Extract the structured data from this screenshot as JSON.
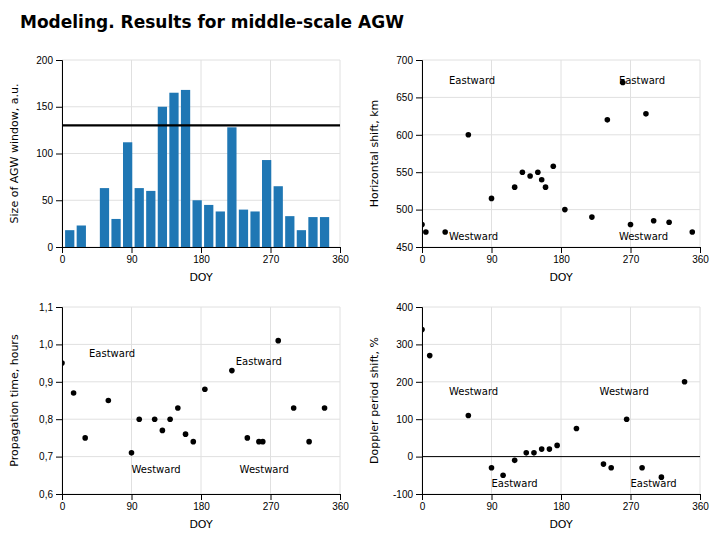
{
  "title": "Modeling. Results for middle-scale AGW",
  "chart_data": [
    {
      "type": "bar",
      "x": [
        10,
        25,
        55,
        70,
        85,
        100,
        115,
        130,
        145,
        160,
        175,
        190,
        205,
        220,
        235,
        250,
        265,
        280,
        295,
        310,
        325,
        340
      ],
      "values": [
        18,
        23,
        63,
        30,
        112,
        63,
        60,
        150,
        165,
        168,
        50,
        45,
        38,
        128,
        40,
        38,
        93,
        65,
        33,
        18,
        32,
        32
      ],
      "hline": 130,
      "xlabel": "DOY",
      "ylabel": "Size of AGW window, a.u.",
      "xlim": [
        0,
        360
      ],
      "ylim": [
        0,
        200
      ],
      "xticks": [
        0,
        90,
        180,
        270,
        360
      ],
      "yticks": [
        0,
        50,
        100,
        150,
        200
      ],
      "grid": true
    },
    {
      "type": "scatter",
      "x": [
        0,
        5,
        30,
        60,
        90,
        120,
        130,
        140,
        150,
        155,
        160,
        170,
        185,
        220,
        240,
        260,
        270,
        290,
        300,
        320,
        350
      ],
      "values": [
        480,
        470,
        470,
        600,
        515,
        530,
        550,
        545,
        550,
        540,
        530,
        558,
        500,
        490,
        620,
        670,
        480,
        628,
        485,
        483,
        470
      ],
      "color": "#000000",
      "annotations": [
        {
          "text": "Eastward",
          "x": 35,
          "y": 668
        },
        {
          "text": "Eastward",
          "x": 255,
          "y": 668
        },
        {
          "text": "Westward",
          "x": 35,
          "y": 460
        },
        {
          "text": "Westward",
          "x": 255,
          "y": 460
        }
      ],
      "xlabel": "DOY",
      "ylabel": "Horizontal shift, km",
      "xlim": [
        0,
        360
      ],
      "ylim": [
        450,
        700
      ],
      "xticks": [
        0,
        90,
        180,
        270,
        360
      ],
      "yticks": [
        450,
        500,
        550,
        600,
        650,
        700
      ],
      "grid": true
    },
    {
      "type": "scatter",
      "x": [
        0,
        15,
        30,
        60,
        90,
        100,
        120,
        130,
        140,
        150,
        160,
        170,
        185,
        220,
        240,
        255,
        260,
        280,
        300,
        320,
        340
      ],
      "values": [
        0.95,
        0.87,
        0.75,
        0.85,
        0.71,
        0.8,
        0.8,
        0.77,
        0.8,
        0.83,
        0.76,
        0.74,
        0.88,
        0.93,
        0.75,
        0.74,
        0.74,
        1.01,
        0.83,
        0.74,
        0.83
      ],
      "color": "#000000",
      "annotations": [
        {
          "text": "Eastward",
          "x": 35,
          "y": 0.965
        },
        {
          "text": "Eastward",
          "x": 225,
          "y": 0.945
        },
        {
          "text": "Westward",
          "x": 90,
          "y": 0.655
        },
        {
          "text": "Westward",
          "x": 230,
          "y": 0.655
        }
      ],
      "xlabel": "DOY",
      "ylabel": "Propagation time, hours",
      "xlim": [
        0,
        360
      ],
      "ylim": [
        0.6,
        1.1
      ],
      "xticks": [
        0,
        90,
        180,
        270,
        360
      ],
      "yticks": [
        {
          "value": 0.6,
          "label": "0,6"
        },
        {
          "value": 0.7,
          "label": "0,7"
        },
        {
          "value": 0.8,
          "label": "0,8"
        },
        {
          "value": 0.9,
          "label": "0,9"
        },
        {
          "value": 1.0,
          "label": "1,0"
        },
        {
          "value": 1.1,
          "label": "1,1"
        }
      ],
      "grid": true
    },
    {
      "type": "scatter",
      "x": [
        0,
        10,
        60,
        90,
        105,
        120,
        135,
        145,
        155,
        165,
        175,
        200,
        235,
        245,
        265,
        285,
        310,
        340
      ],
      "values": [
        340,
        270,
        110,
        -30,
        -50,
        -10,
        10,
        10,
        20,
        20,
        30,
        75,
        -20,
        -30,
        100,
        -30,
        -55,
        200
      ],
      "color": "#000000",
      "hline": 0,
      "annotations": [
        {
          "text": "Westward",
          "x": 35,
          "y": 165
        },
        {
          "text": "Westward",
          "x": 230,
          "y": 165
        },
        {
          "text": "Eastward",
          "x": 90,
          "y": -82
        },
        {
          "text": "Eastward",
          "x": 270,
          "y": -82
        }
      ],
      "xlabel": "DOY",
      "ylabel": "Doppler period shift, %",
      "xlim": [
        0,
        360
      ],
      "ylim": [
        -100,
        400
      ],
      "xticks": [
        0,
        90,
        180,
        270,
        360
      ],
      "yticks": [
        -100,
        0,
        100,
        200,
        300,
        400
      ],
      "grid": true
    }
  ]
}
